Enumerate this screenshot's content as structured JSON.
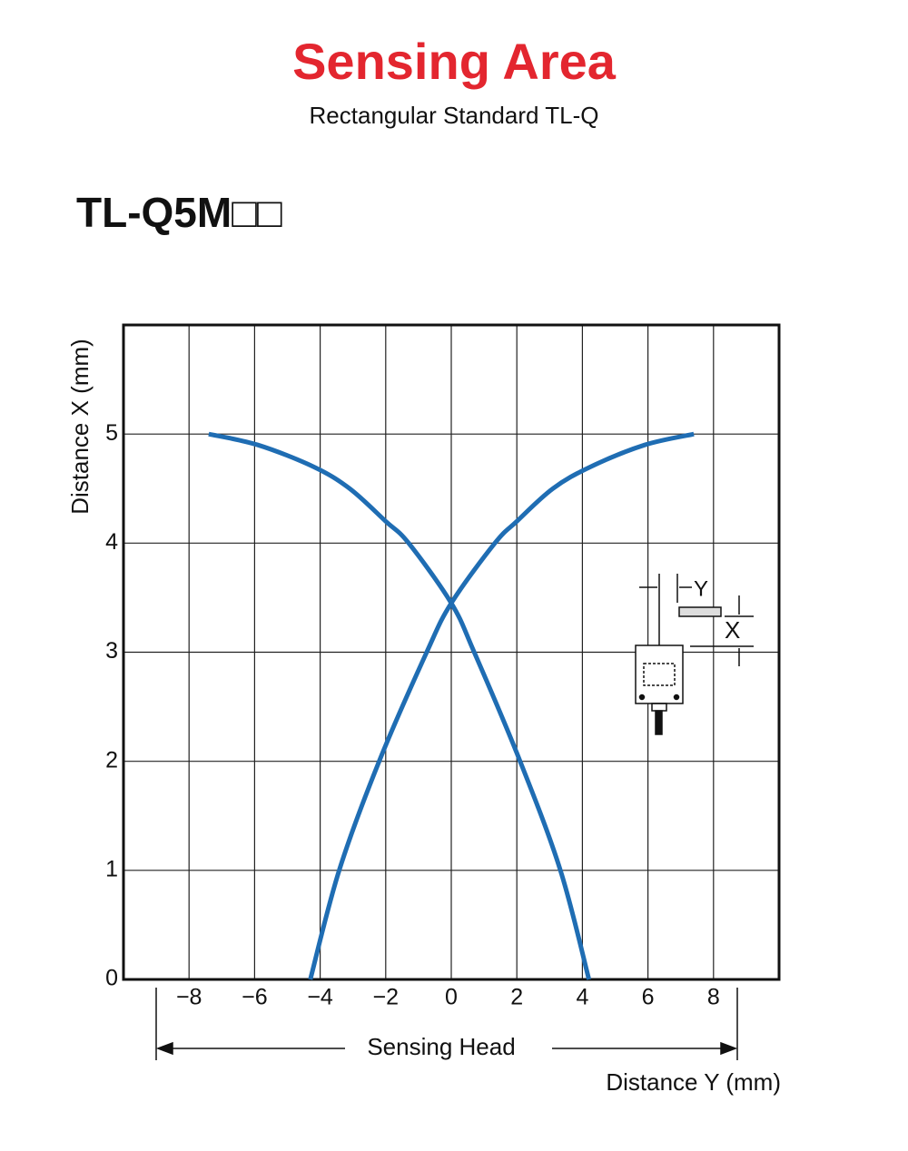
{
  "heading": {
    "title": "Sensing Area",
    "subtitle": "Rectangular Standard TL-Q"
  },
  "model": "TL-Q5M□□",
  "chart_data": {
    "type": "line",
    "x_label": "Distance Y (mm)",
    "y_label": "Distance X (mm)",
    "annotation": "Sensing Head",
    "inset_labels": [
      "Y",
      "X"
    ],
    "xlim": [
      -10,
      10
    ],
    "ylim": [
      0,
      6
    ],
    "xticks": [
      {
        "value": -8,
        "label": "−8"
      },
      {
        "value": -6,
        "label": "−6"
      },
      {
        "value": -4,
        "label": "−4"
      },
      {
        "value": -2,
        "label": "−2"
      },
      0,
      2,
      4,
      6,
      8
    ],
    "yticks": [
      0,
      1,
      2,
      3,
      4,
      5
    ],
    "grid": true,
    "series": [
      {
        "color": "#1f6db3",
        "x": [
          -4.3,
          -3.42,
          -2.2,
          -0.75,
          0,
          1.33,
          2.0,
          3.1,
          4.25,
          5.9,
          7.4
        ],
        "values": [
          0,
          1,
          2,
          3,
          3.45,
          4,
          4.2,
          4.5,
          4.7,
          4.9,
          5
        ]
      },
      {
        "color": "#1f6db3",
        "x": [
          4.2,
          3.33,
          2.1,
          0.7,
          0,
          -1.3,
          -2.0,
          -3.1,
          -4.2,
          -5.9,
          -7.4
        ],
        "values": [
          0,
          1,
          2,
          3,
          3.45,
          4,
          4.2,
          4.5,
          4.7,
          4.9,
          5
        ]
      }
    ]
  }
}
